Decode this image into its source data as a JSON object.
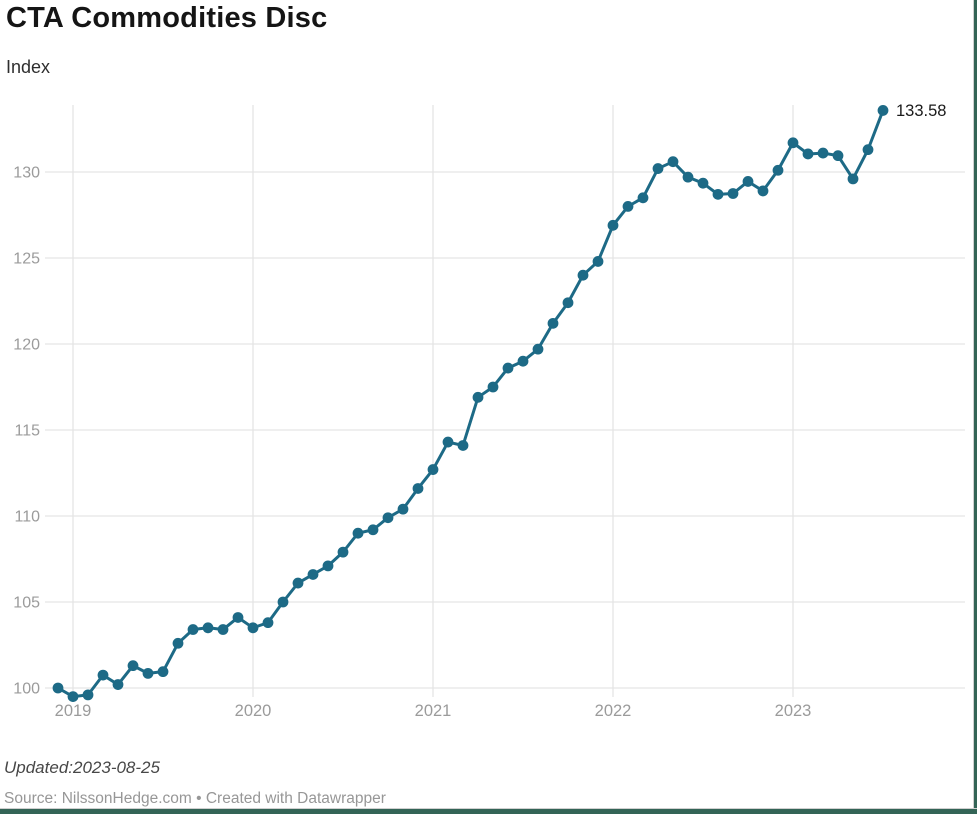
{
  "header": {
    "title": "CTA Commodities Disc",
    "subtitle": "Index"
  },
  "footer": {
    "updated": "Updated:2023-08-25",
    "source": "Source: NilssonHedge.com • Created with Datawrapper"
  },
  "colors": {
    "line": "#1d6a86",
    "grid": "#e5e5e5",
    "tick_label": "#9b9b9b",
    "value_label": "#1a1a1a",
    "frame_accent": "#336456"
  },
  "chart_data": {
    "type": "line",
    "title": "CTA Commodities Disc",
    "ylabel": "Index",
    "x": [
      "2018-12",
      "2019-01",
      "2019-02",
      "2019-03",
      "2019-04",
      "2019-05",
      "2019-06",
      "2019-07",
      "2019-08",
      "2019-09",
      "2019-10",
      "2019-11",
      "2019-12",
      "2020-01",
      "2020-02",
      "2020-03",
      "2020-04",
      "2020-05",
      "2020-06",
      "2020-07",
      "2020-08",
      "2020-09",
      "2020-10",
      "2020-11",
      "2020-12",
      "2021-01",
      "2021-02",
      "2021-03",
      "2021-04",
      "2021-05",
      "2021-06",
      "2021-07",
      "2021-08",
      "2021-09",
      "2021-10",
      "2021-11",
      "2021-12",
      "2022-01",
      "2022-02",
      "2022-03",
      "2022-04",
      "2022-05",
      "2022-06",
      "2022-07",
      "2022-08",
      "2022-09",
      "2022-10",
      "2022-11",
      "2022-12",
      "2023-01",
      "2023-02",
      "2023-03",
      "2023-04",
      "2023-05",
      "2023-06",
      "2023-07"
    ],
    "values": [
      100.0,
      99.5,
      99.6,
      100.75,
      100.2,
      101.3,
      100.85,
      100.95,
      102.6,
      103.4,
      103.5,
      103.4,
      104.1,
      103.5,
      103.8,
      105.0,
      106.1,
      106.6,
      107.1,
      107.9,
      109.0,
      109.2,
      109.9,
      110.4,
      111.6,
      112.7,
      114.3,
      114.1,
      116.9,
      117.5,
      118.6,
      119.0,
      119.7,
      121.2,
      122.4,
      124.0,
      124.8,
      126.9,
      128.0,
      128.5,
      130.2,
      130.6,
      129.7,
      129.35,
      128.7,
      128.75,
      129.45,
      128.9,
      130.1,
      131.7,
      131.05,
      131.1,
      130.95,
      129.6,
      131.3,
      133.58
    ],
    "last_value_label": "133.58",
    "yticks": [
      100,
      105,
      110,
      115,
      120,
      125,
      130
    ],
    "xticks": [
      "2019",
      "2020",
      "2021",
      "2022",
      "2023"
    ],
    "ylim": [
      98.5,
      134.5
    ],
    "grid": true,
    "legend": "none",
    "marker": "circle"
  }
}
